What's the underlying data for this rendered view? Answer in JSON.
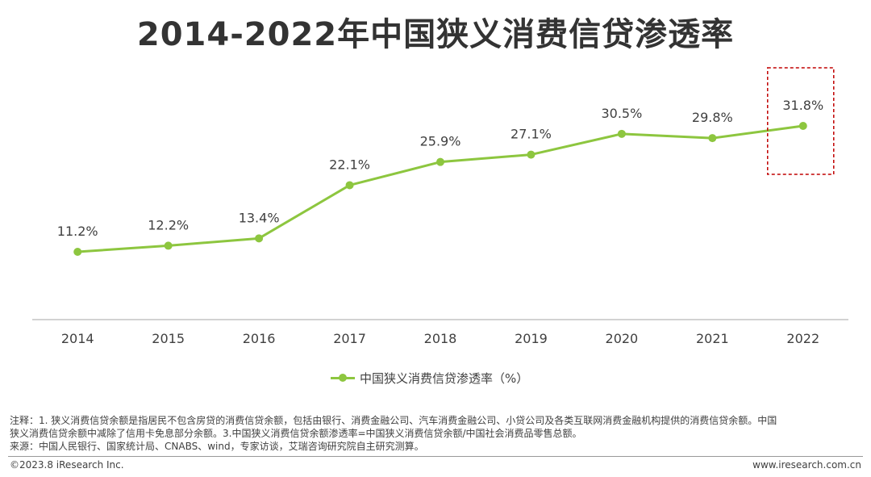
{
  "title": "2014-2022年中国狭义消费信贷渗透率",
  "chart_data": {
    "type": "line",
    "categories": [
      "2014",
      "2015",
      "2016",
      "2017",
      "2018",
      "2019",
      "2020",
      "2021",
      "2022"
    ],
    "series": [
      {
        "name": "中国狭义消费信贷渗透率（%）",
        "values": [
          11.2,
          12.2,
          13.4,
          22.1,
          25.9,
          27.1,
          30.5,
          29.8,
          31.8
        ],
        "labels": [
          "11.2%",
          "12.2%",
          "13.4%",
          "22.1%",
          "25.9%",
          "27.1%",
          "30.5%",
          "29.8%",
          "31.8%"
        ],
        "color": "#8dc63f"
      }
    ],
    "highlight_category": "2022",
    "highlight_color": "#c00000",
    "legend_position": "bottom",
    "grid": false
  },
  "notes": {
    "line1": "注释：1. 狭义消费信贷余额是指居民不包含房贷的消费信贷余额，包括由银行、消费金融公司、汽车消费金融公司、小贷公司及各类互联网消费金融机构提供的消费信贷余额。中国",
    "line2": "狭义消费信贷余额中减除了信用卡免息部分余额。3.中国狭义消费信贷余额渗透率=中国狭义消费信贷余额/中国社会消费品零售总额。",
    "line3": "来源：中国人民银行、国家统计局、CNABS、wind，专家访谈，艾瑞咨询研究院自主研究测算。"
  },
  "footer": {
    "copyright": "©2023.8 iResearch Inc.",
    "website": "www.iresearch.com.cn"
  }
}
